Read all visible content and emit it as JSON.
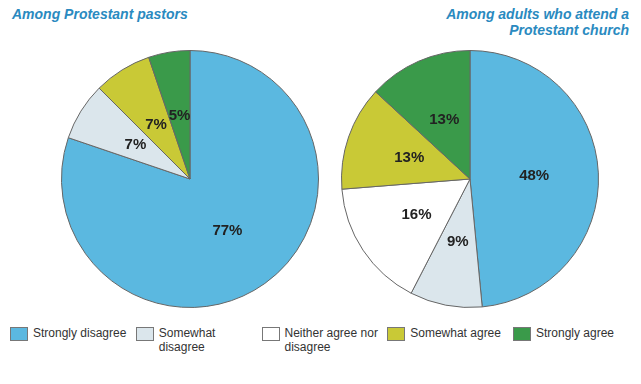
{
  "chart_data": [
    {
      "type": "pie",
      "title": "Among Protestant pastors",
      "categories": [
        "Strongly disagree",
        "Somewhat disagree",
        "Neither agree nor disagree",
        "Somewhat agree",
        "Strongly agree"
      ],
      "values": [
        77,
        7,
        null,
        7,
        5
      ],
      "value_labels": [
        "77%",
        "7%",
        null,
        "7%",
        "5%"
      ],
      "colors": [
        "#5bb8e0",
        "#dbe6ec",
        "#ffffff",
        "#c9c936",
        "#3a9a4a"
      ],
      "data_labels": true,
      "legend": "bottom"
    },
    {
      "type": "pie",
      "title": "Among adults who attend a Protestant church",
      "categories": [
        "Strongly disagree",
        "Somewhat disagree",
        "Neither agree nor disagree",
        "Somewhat agree",
        "Strongly agree"
      ],
      "values": [
        48,
        9,
        16,
        13,
        13
      ],
      "value_labels": [
        "48%",
        "9%",
        "16%",
        "13%",
        "13%"
      ],
      "colors": [
        "#5bb8e0",
        "#dbe6ec",
        "#ffffff",
        "#c9c936",
        "#3a9a4a"
      ],
      "data_labels": true
    }
  ]
}
